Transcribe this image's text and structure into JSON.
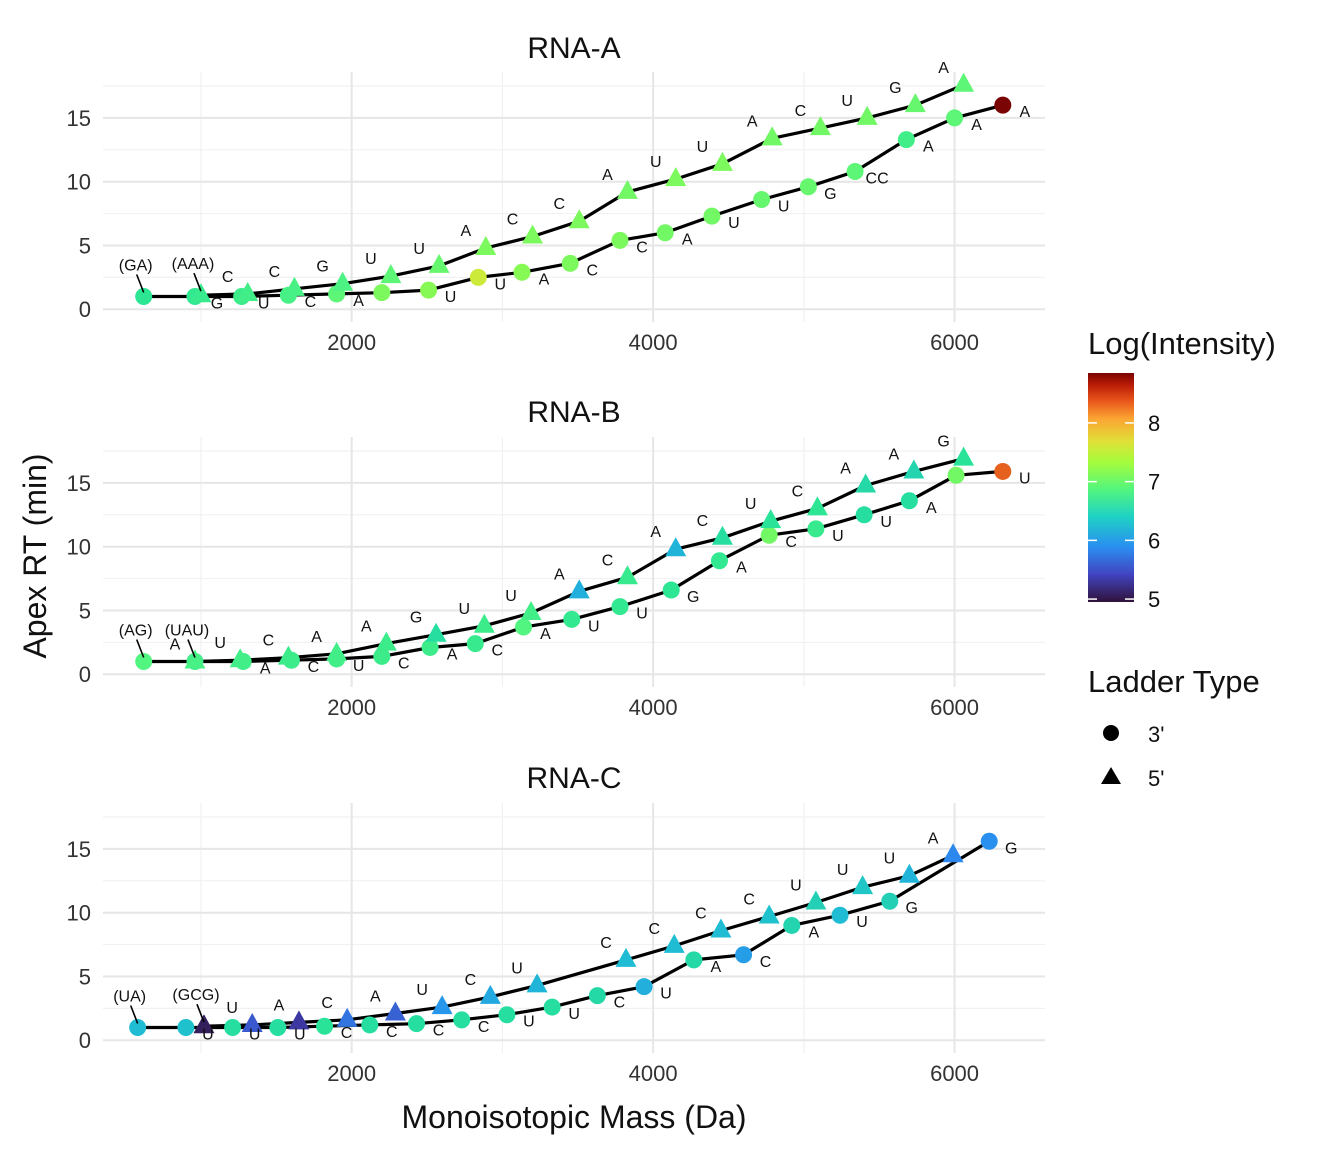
{
  "chart_data": {
    "type": "line",
    "xlabel": "Monoisotopic Mass (Da)",
    "ylabel": "Apex RT (min)",
    "xlim": [
      350,
      6600
    ],
    "ylim": [
      -1,
      18.6
    ],
    "xticks": [
      2000,
      4000,
      6000
    ],
    "yticks": [
      0,
      5,
      10,
      15
    ],
    "grid": true,
    "legend": {
      "color_title": "Log(Intensity)",
      "color_ticks": [
        5,
        6,
        7,
        8
      ],
      "color_range": [
        4.95,
        8.85
      ],
      "colormap": "turbo",
      "shape_title": "Ladder Type",
      "shape_entries": [
        {
          "label": "3'",
          "shape": "circle"
        },
        {
          "label": "5'",
          "shape": "triangle"
        }
      ],
      "placement": "right"
    },
    "panels": [
      {
        "title": "RNA-A",
        "series": [
          {
            "name": "3'",
            "shape": "circle",
            "points": [
              {
                "x": 620,
                "y": 1.0,
                "c": 6.55,
                "label": "(GA)"
              },
              {
                "x": 960,
                "y": 1.0,
                "c": 6.6,
                "label": "G"
              },
              {
                "x": 1270,
                "y": 1.0,
                "c": 6.7,
                "label": "U"
              },
              {
                "x": 1580,
                "y": 1.1,
                "c": 6.8,
                "label": "C"
              },
              {
                "x": 1900,
                "y": 1.2,
                "c": 6.95,
                "label": "A"
              },
              {
                "x": 2200,
                "y": 1.3,
                "c": 7.1,
                "label": ""
              },
              {
                "x": 2510,
                "y": 1.5,
                "c": 7.15,
                "label": "U"
              },
              {
                "x": 2840,
                "y": 2.5,
                "c": 7.55,
                "label": "U"
              },
              {
                "x": 3130,
                "y": 2.9,
                "c": 7.15,
                "label": "A"
              },
              {
                "x": 3450,
                "y": 3.6,
                "c": 7.1,
                "label": "C"
              },
              {
                "x": 3780,
                "y": 5.4,
                "c": 7.1,
                "label": "C"
              },
              {
                "x": 4080,
                "y": 6.0,
                "c": 7.05,
                "label": "A"
              },
              {
                "x": 4390,
                "y": 7.3,
                "c": 7.05,
                "label": "U"
              },
              {
                "x": 4720,
                "y": 8.6,
                "c": 7.0,
                "label": "U"
              },
              {
                "x": 5030,
                "y": 9.6,
                "c": 7.0,
                "label": "G"
              },
              {
                "x": 5340,
                "y": 10.8,
                "c": 6.95,
                "label": "CC"
              },
              {
                "x": 5680,
                "y": 13.3,
                "c": 6.75,
                "label": "A"
              },
              {
                "x": 6000,
                "y": 15.0,
                "c": 6.95,
                "label": "A"
              },
              {
                "x": 6320,
                "y": 16.0,
                "c": 8.85,
                "label": "A"
              }
            ]
          },
          {
            "name": "5'",
            "shape": "triangle",
            "points": [
              {
                "x": 1000,
                "y": 1.1,
                "c": 6.65,
                "label": "(AAA)"
              },
              {
                "x": 1310,
                "y": 1.2,
                "c": 6.75,
                "label": "C"
              },
              {
                "x": 1620,
                "y": 1.6,
                "c": 6.8,
                "label": "C"
              },
              {
                "x": 1940,
                "y": 2.0,
                "c": 6.85,
                "label": "G"
              },
              {
                "x": 2260,
                "y": 2.6,
                "c": 6.95,
                "label": "U"
              },
              {
                "x": 2580,
                "y": 3.4,
                "c": 7.0,
                "label": "U"
              },
              {
                "x": 2890,
                "y": 4.8,
                "c": 7.1,
                "label": "A"
              },
              {
                "x": 3200,
                "y": 5.7,
                "c": 7.1,
                "label": "C"
              },
              {
                "x": 3510,
                "y": 6.9,
                "c": 7.1,
                "label": "C"
              },
              {
                "x": 3830,
                "y": 9.2,
                "c": 7.05,
                "label": "A"
              },
              {
                "x": 4150,
                "y": 10.2,
                "c": 7.1,
                "label": "U"
              },
              {
                "x": 4460,
                "y": 11.4,
                "c": 7.1,
                "label": "U"
              },
              {
                "x": 4790,
                "y": 13.4,
                "c": 7.05,
                "label": "A"
              },
              {
                "x": 5110,
                "y": 14.2,
                "c": 7.05,
                "label": "C"
              },
              {
                "x": 5420,
                "y": 15.0,
                "c": 7.05,
                "label": "U"
              },
              {
                "x": 5740,
                "y": 16.0,
                "c": 7.0,
                "label": "G"
              },
              {
                "x": 6060,
                "y": 17.6,
                "c": 6.95,
                "label": "A"
              }
            ]
          }
        ]
      },
      {
        "title": "RNA-B",
        "series": [
          {
            "name": "3'",
            "shape": "circle",
            "points": [
              {
                "x": 620,
                "y": 1.0,
                "c": 6.9,
                "label": "(AG)"
              },
              {
                "x": 960,
                "y": 1.0,
                "c": 6.75,
                "label": "(UAU)"
              },
              {
                "x": 1280,
                "y": 1.0,
                "c": 6.75,
                "label": "A"
              },
              {
                "x": 1600,
                "y": 1.1,
                "c": 6.7,
                "label": "C"
              },
              {
                "x": 1900,
                "y": 1.2,
                "c": 6.75,
                "label": "U"
              },
              {
                "x": 2200,
                "y": 1.4,
                "c": 6.7,
                "label": "C"
              },
              {
                "x": 2520,
                "y": 2.1,
                "c": 6.7,
                "label": "A"
              },
              {
                "x": 2820,
                "y": 2.4,
                "c": 6.65,
                "label": "C"
              },
              {
                "x": 3140,
                "y": 3.7,
                "c": 6.9,
                "label": "A"
              },
              {
                "x": 3460,
                "y": 4.3,
                "c": 6.6,
                "label": "U"
              },
              {
                "x": 3780,
                "y": 5.3,
                "c": 6.6,
                "label": "U"
              },
              {
                "x": 4120,
                "y": 6.6,
                "c": 6.55,
                "label": "G"
              },
              {
                "x": 4440,
                "y": 8.9,
                "c": 6.6,
                "label": "A"
              },
              {
                "x": 4770,
                "y": 10.9,
                "c": 7.05,
                "label": "C"
              },
              {
                "x": 5080,
                "y": 11.4,
                "c": 6.65,
                "label": "U"
              },
              {
                "x": 5400,
                "y": 12.5,
                "c": 6.45,
                "label": "U"
              },
              {
                "x": 5700,
                "y": 13.6,
                "c": 6.45,
                "label": "A"
              },
              {
                "x": 6010,
                "y": 15.6,
                "c": 7.05,
                "label": ""
              },
              {
                "x": 6320,
                "y": 15.9,
                "c": 8.35,
                "label": "U"
              }
            ]
          },
          {
            "name": "5'",
            "shape": "triangle",
            "points": [
              {
                "x": 960,
                "y": 1.0,
                "c": 6.8,
                "label": "A"
              },
              {
                "x": 1260,
                "y": 1.1,
                "c": 6.75,
                "label": "U"
              },
              {
                "x": 1580,
                "y": 1.3,
                "c": 6.7,
                "label": "C"
              },
              {
                "x": 1900,
                "y": 1.6,
                "c": 6.75,
                "label": "A"
              },
              {
                "x": 2230,
                "y": 2.4,
                "c": 6.7,
                "label": "A"
              },
              {
                "x": 2560,
                "y": 3.1,
                "c": 6.45,
                "label": "G"
              },
              {
                "x": 2880,
                "y": 3.8,
                "c": 6.7,
                "label": "U"
              },
              {
                "x": 3190,
                "y": 4.8,
                "c": 6.75,
                "label": "U"
              },
              {
                "x": 3510,
                "y": 6.5,
                "c": 6.0,
                "label": "A"
              },
              {
                "x": 3830,
                "y": 7.6,
                "c": 6.65,
                "label": "C"
              },
              {
                "x": 4150,
                "y": 9.8,
                "c": 6.05,
                "label": "A"
              },
              {
                "x": 4460,
                "y": 10.7,
                "c": 6.45,
                "label": "C"
              },
              {
                "x": 4780,
                "y": 12.0,
                "c": 6.5,
                "label": "U"
              },
              {
                "x": 5090,
                "y": 13.0,
                "c": 6.55,
                "label": "C"
              },
              {
                "x": 5410,
                "y": 14.8,
                "c": 6.4,
                "label": "A"
              },
              {
                "x": 5730,
                "y": 15.9,
                "c": 6.35,
                "label": "A"
              },
              {
                "x": 6060,
                "y": 16.9,
                "c": 6.5,
                "label": "G"
              }
            ]
          }
        ]
      },
      {
        "title": "RNA-C",
        "series": [
          {
            "name": "3'",
            "shape": "circle",
            "points": [
              {
                "x": 580,
                "y": 1.0,
                "c": 6.1,
                "label": "(UA)"
              },
              {
                "x": 900,
                "y": 1.0,
                "c": 6.15,
                "label": "U"
              },
              {
                "x": 1210,
                "y": 1.0,
                "c": 6.45,
                "label": "U"
              },
              {
                "x": 1510,
                "y": 1.0,
                "c": 6.45,
                "label": "U"
              },
              {
                "x": 1820,
                "y": 1.1,
                "c": 6.5,
                "label": "C"
              },
              {
                "x": 2120,
                "y": 1.2,
                "c": 6.45,
                "label": "C"
              },
              {
                "x": 2430,
                "y": 1.3,
                "c": 6.45,
                "label": "C"
              },
              {
                "x": 2730,
                "y": 1.6,
                "c": 6.45,
                "label": "C"
              },
              {
                "x": 3030,
                "y": 2.0,
                "c": 6.45,
                "label": "U"
              },
              {
                "x": 3330,
                "y": 2.6,
                "c": 6.45,
                "label": "U"
              },
              {
                "x": 3630,
                "y": 3.5,
                "c": 6.4,
                "label": "C"
              },
              {
                "x": 3940,
                "y": 4.2,
                "c": 6.0,
                "label": "U"
              },
              {
                "x": 4270,
                "y": 6.3,
                "c": 6.4,
                "label": "A"
              },
              {
                "x": 4600,
                "y": 6.7,
                "c": 5.85,
                "label": "C"
              },
              {
                "x": 4920,
                "y": 9.0,
                "c": 6.35,
                "label": "A"
              },
              {
                "x": 5240,
                "y": 9.8,
                "c": 6.1,
                "label": "U"
              },
              {
                "x": 5570,
                "y": 10.9,
                "c": 6.3,
                "label": "G"
              },
              {
                "x": 6230,
                "y": 15.6,
                "c": 5.75,
                "label": "G"
              }
            ]
          },
          {
            "name": "5'",
            "shape": "triangle",
            "points": [
              {
                "x": 1020,
                "y": 1.1,
                "c": 5.05,
                "label": "(GCG)"
              },
              {
                "x": 1340,
                "y": 1.2,
                "c": 5.45,
                "label": "U"
              },
              {
                "x": 1650,
                "y": 1.4,
                "c": 5.25,
                "label": "A"
              },
              {
                "x": 1970,
                "y": 1.6,
                "c": 5.6,
                "label": "C"
              },
              {
                "x": 2290,
                "y": 2.1,
                "c": 5.5,
                "label": "A"
              },
              {
                "x": 2600,
                "y": 2.6,
                "c": 5.8,
                "label": "U"
              },
              {
                "x": 2920,
                "y": 3.4,
                "c": 5.95,
                "label": "C"
              },
              {
                "x": 3230,
                "y": 4.3,
                "c": 6.05,
                "label": "U"
              },
              {
                "x": 3820,
                "y": 6.3,
                "c": 6.1,
                "label": "C"
              },
              {
                "x": 4140,
                "y": 7.4,
                "c": 6.1,
                "label": "C"
              },
              {
                "x": 4450,
                "y": 8.6,
                "c": 6.1,
                "label": "C"
              },
              {
                "x": 4770,
                "y": 9.7,
                "c": 6.15,
                "label": "C"
              },
              {
                "x": 5080,
                "y": 10.8,
                "c": 6.3,
                "label": "U"
              },
              {
                "x": 5390,
                "y": 12.0,
                "c": 6.2,
                "label": "U"
              },
              {
                "x": 5700,
                "y": 12.9,
                "c": 6.05,
                "label": "U"
              },
              {
                "x": 5990,
                "y": 14.5,
                "c": 5.7,
                "label": "A"
              }
            ]
          }
        ]
      }
    ]
  }
}
